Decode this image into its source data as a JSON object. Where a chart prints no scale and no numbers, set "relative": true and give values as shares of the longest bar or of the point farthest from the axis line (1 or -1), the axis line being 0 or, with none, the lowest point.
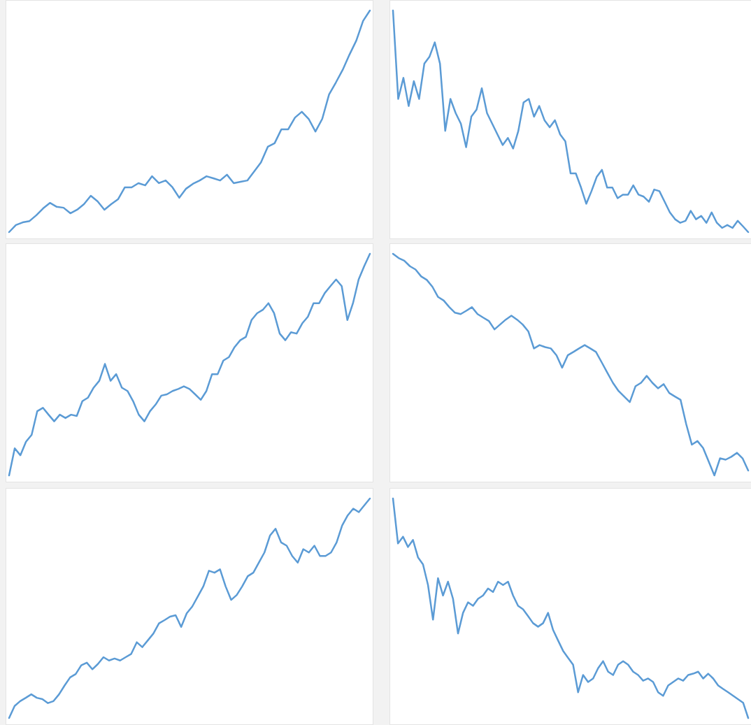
{
  "chart_data": [
    {
      "type": "line",
      "relative": true,
      "categories": [
        null,
        null,
        null,
        null,
        null,
        null,
        null,
        null,
        null,
        null,
        null,
        null,
        null,
        null,
        null,
        null,
        null,
        null,
        null,
        null,
        null,
        null,
        null,
        null,
        null,
        null,
        null,
        null,
        null,
        null,
        null,
        null,
        null,
        null,
        null,
        null,
        null,
        null,
        null,
        null,
        null,
        null,
        null,
        null,
        null,
        null,
        null,
        null,
        null,
        null,
        null,
        null,
        null,
        null
      ],
      "series": [
        {
          "color": "#5b9bd5",
          "values": [
            0,
            0.032,
            0.044,
            0.05,
            0.076,
            0.107,
            0.132,
            0.114,
            0.11,
            0.085,
            0.101,
            0.126,
            0.164,
            0.139,
            0.101,
            0.126,
            0.148,
            0.202,
            0.202,
            0.221,
            0.211,
            0.252,
            0.221,
            0.233,
            0.202,
            0.155,
            0.196,
            0.218,
            0.233,
            0.252,
            0.243,
            0.233,
            0.259,
            0.221,
            0.227,
            0.233,
            0.274,
            0.315,
            0.385,
            0.401,
            0.464,
            0.464,
            0.517,
            0.543,
            0.511,
            0.454,
            0.511,
            0.621,
            0.675,
            0.732,
            0.801,
            0.864,
            0.953,
            1
          ]
        }
      ]
    },
    {
      "type": "line",
      "relative": true,
      "categories": [
        null,
        null,
        null,
        null,
        null,
        null,
        null,
        null,
        null,
        null,
        null,
        null,
        null,
        null,
        null,
        null,
        null,
        null,
        null,
        null,
        null,
        null,
        null,
        null,
        null,
        null,
        null,
        null,
        null,
        null,
        null,
        null,
        null,
        null,
        null,
        null,
        null,
        null,
        null,
        null,
        null,
        null,
        null,
        null,
        null,
        null,
        null,
        null,
        null,
        null,
        null,
        null,
        null,
        null,
        null,
        null,
        null,
        null,
        null,
        null,
        null,
        null,
        null,
        null,
        null,
        null,
        null,
        null,
        null
      ],
      "series": [
        {
          "color": "#5b9bd5",
          "values": [
            1,
            0.601,
            0.696,
            0.569,
            0.681,
            0.601,
            0.76,
            0.792,
            0.856,
            0.76,
            0.457,
            0.601,
            0.537,
            0.489,
            0.383,
            0.521,
            0.553,
            0.649,
            0.537,
            0.489,
            0.441,
            0.393,
            0.425,
            0.377,
            0.457,
            0.585,
            0.601,
            0.521,
            0.569,
            0.505,
            0.473,
            0.505,
            0.441,
            0.409,
            0.265,
            0.265,
            0.201,
            0.128,
            0.185,
            0.249,
            0.281,
            0.201,
            0.201,
            0.153,
            0.169,
            0.169,
            0.211,
            0.169,
            0.16,
            0.137,
            0.192,
            0.185,
            0.137,
            0.089,
            0.058,
            0.042,
            0.051,
            0.096,
            0.058,
            0.073,
            0.042,
            0.089,
            0.042,
            0.019,
            0.032,
            0.019,
            0.051,
            0.026,
            0
          ]
        }
      ]
    },
    {
      "type": "line",
      "relative": true,
      "categories": [
        null,
        null,
        null,
        null,
        null,
        null,
        null,
        null,
        null,
        null,
        null,
        null,
        null,
        null,
        null,
        null,
        null,
        null,
        null,
        null,
        null,
        null,
        null,
        null,
        null,
        null,
        null,
        null,
        null,
        null,
        null,
        null,
        null,
        null,
        null,
        null,
        null,
        null,
        null,
        null,
        null,
        null,
        null,
        null,
        null,
        null,
        null,
        null,
        null,
        null,
        null,
        null,
        null,
        null,
        null,
        null,
        null,
        null,
        null,
        null,
        null,
        null,
        null,
        null,
        null
      ],
      "series": [
        {
          "color": "#5b9bd5",
          "values": [
            0,
            0.122,
            0.091,
            0.152,
            0.183,
            0.29,
            0.305,
            0.274,
            0.244,
            0.274,
            0.259,
            0.274,
            0.268,
            0.335,
            0.351,
            0.396,
            0.427,
            0.503,
            0.427,
            0.457,
            0.396,
            0.381,
            0.335,
            0.274,
            0.244,
            0.29,
            0.32,
            0.36,
            0.366,
            0.381,
            0.39,
            0.402,
            0.39,
            0.366,
            0.341,
            0.381,
            0.457,
            0.457,
            0.518,
            0.534,
            0.579,
            0.61,
            0.625,
            0.701,
            0.732,
            0.747,
            0.777,
            0.732,
            0.64,
            0.61,
            0.646,
            0.64,
            0.686,
            0.716,
            0.777,
            0.777,
            0.823,
            0.854,
            0.884,
            0.854,
            0.701,
            0.777,
            0.884,
            0.945,
            1
          ]
        }
      ]
    },
    {
      "type": "line",
      "relative": true,
      "categories": [
        null,
        null,
        null,
        null,
        null,
        null,
        null,
        null,
        null,
        null,
        null,
        null,
        null,
        null,
        null,
        null,
        null,
        null,
        null,
        null,
        null,
        null,
        null,
        null,
        null,
        null,
        null,
        null,
        null,
        null,
        null,
        null,
        null,
        null,
        null,
        null,
        null,
        null,
        null,
        null,
        null,
        null,
        null,
        null,
        null,
        null,
        null,
        null,
        null,
        null,
        null,
        null,
        null,
        null,
        null,
        null,
        null,
        null,
        null,
        null,
        null,
        null,
        null,
        null
      ],
      "series": [
        {
          "color": "#5b9bd5",
          "values": [
            1,
            0.981,
            0.969,
            0.944,
            0.929,
            0.898,
            0.882,
            0.851,
            0.805,
            0.789,
            0.759,
            0.734,
            0.728,
            0.743,
            0.759,
            0.728,
            0.712,
            0.697,
            0.659,
            0.681,
            0.703,
            0.721,
            0.703,
            0.681,
            0.65,
            0.573,
            0.588,
            0.579,
            0.573,
            0.542,
            0.486,
            0.542,
            0.557,
            0.573,
            0.588,
            0.573,
            0.557,
            0.511,
            0.464,
            0.418,
            0.381,
            0.356,
            0.331,
            0.402,
            0.418,
            0.449,
            0.418,
            0.393,
            0.412,
            0.372,
            0.356,
            0.341,
            0.232,
            0.139,
            0.155,
            0.124,
            0.062,
            0,
            0.077,
            0.071,
            0.084,
            0.102,
            0.077,
            0.022
          ]
        }
      ]
    },
    {
      "type": "line",
      "relative": true,
      "categories": [
        null,
        null,
        null,
        null,
        null,
        null,
        null,
        null,
        null,
        null,
        null,
        null,
        null,
        null,
        null,
        null,
        null,
        null,
        null,
        null,
        null,
        null,
        null,
        null,
        null,
        null,
        null,
        null,
        null,
        null,
        null,
        null,
        null,
        null,
        null,
        null,
        null,
        null,
        null,
        null,
        null,
        null,
        null,
        null,
        null,
        null,
        null,
        null,
        null,
        null,
        null,
        null,
        null,
        null,
        null,
        null,
        null,
        null,
        null,
        null,
        null,
        null,
        null,
        null,
        null,
        null
      ],
      "series": [
        {
          "color": "#5b9bd5",
          "values": [
            0,
            0.055,
            0.077,
            0.092,
            0.108,
            0.092,
            0.086,
            0.068,
            0.077,
            0.108,
            0.148,
            0.185,
            0.2,
            0.24,
            0.252,
            0.222,
            0.246,
            0.277,
            0.262,
            0.271,
            0.262,
            0.277,
            0.292,
            0.345,
            0.323,
            0.354,
            0.385,
            0.431,
            0.446,
            0.462,
            0.468,
            0.415,
            0.477,
            0.508,
            0.554,
            0.6,
            0.671,
            0.662,
            0.677,
            0.6,
            0.538,
            0.56,
            0.6,
            0.646,
            0.662,
            0.708,
            0.754,
            0.831,
            0.862,
            0.8,
            0.785,
            0.738,
            0.708,
            0.769,
            0.754,
            0.785,
            0.738,
            0.738,
            0.754,
            0.8,
            0.877,
            0.923,
            0.954,
            0.938,
            0.969,
            1
          ]
        }
      ]
    },
    {
      "type": "line",
      "relative": true,
      "categories": [
        null,
        null,
        null,
        null,
        null,
        null,
        null,
        null,
        null,
        null,
        null,
        null,
        null,
        null,
        null,
        null,
        null,
        null,
        null,
        null,
        null,
        null,
        null,
        null,
        null,
        null,
        null,
        null,
        null,
        null,
        null,
        null,
        null,
        null,
        null,
        null,
        null,
        null,
        null,
        null,
        null,
        null,
        null,
        null,
        null,
        null,
        null,
        null,
        null,
        null,
        null,
        null,
        null,
        null,
        null,
        null,
        null,
        null,
        null,
        null,
        null,
        null,
        null,
        null,
        null,
        null,
        null,
        null,
        null,
        null,
        null,
        null
      ],
      "series": [
        {
          "color": "#5b9bd5",
          "values": [
            1,
            0.795,
            0.826,
            0.779,
            0.811,
            0.732,
            0.7,
            0.606,
            0.448,
            0.637,
            0.558,
            0.621,
            0.543,
            0.385,
            0.479,
            0.527,
            0.511,
            0.543,
            0.558,
            0.59,
            0.574,
            0.621,
            0.606,
            0.621,
            0.558,
            0.511,
            0.495,
            0.464,
            0.432,
            0.416,
            0.432,
            0.479,
            0.401,
            0.353,
            0.306,
            0.274,
            0.243,
            0.117,
            0.196,
            0.164,
            0.18,
            0.227,
            0.259,
            0.211,
            0.196,
            0.243,
            0.259,
            0.243,
            0.211,
            0.196,
            0.17,
            0.18,
            0.164,
            0.117,
            0.101,
            0.148,
            0.164,
            0.18,
            0.17,
            0.196,
            0.202,
            0.211,
            0.18,
            0.202,
            0.18,
            0.148,
            0.132,
            0.117,
            0.101,
            0.085,
            0.069,
            0
          ]
        }
      ]
    }
  ]
}
